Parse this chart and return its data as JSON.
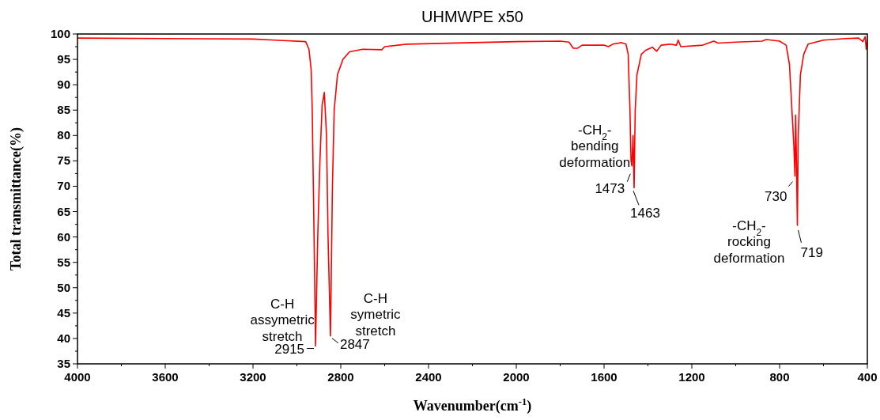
{
  "chart_data": {
    "type": "line",
    "title": "UHMWPE x50",
    "xlabel": "Wavenumber(cm$^{-1}$)",
    "ylabel": "Total transmittance(%)",
    "xlim": [
      4000,
      400
    ],
    "ylim": [
      35,
      100
    ],
    "xticks": [
      4000,
      {
        "value": 3800,
        "label": null
      },
      3600,
      {
        "value": 3400,
        "label": null
      },
      3200,
      {
        "value": 3000,
        "label": null
      },
      2800,
      {
        "value": 2600,
        "label": null
      },
      2400,
      {
        "value": 2200,
        "label": null
      },
      2000,
      {
        "value": 1800,
        "label": null
      },
      1600,
      {
        "value": 1400,
        "label": null
      },
      1200,
      {
        "value": 1000,
        "label": null
      },
      800,
      {
        "value": 600,
        "label": null
      },
      400
    ],
    "yticks": [
      35,
      {
        "value": 37.5,
        "label": null
      },
      40,
      {
        "value": 42.5,
        "label": null
      },
      45,
      {
        "value": 47.5,
        "label": null
      },
      50,
      {
        "value": 52.5,
        "label": null
      },
      55,
      {
        "value": 57.5,
        "label": null
      },
      60,
      {
        "value": 62.5,
        "label": null
      },
      65,
      {
        "value": 67.5,
        "label": null
      },
      70,
      {
        "value": 72.5,
        "label": null
      },
      75,
      {
        "value": 77.5,
        "label": null
      },
      80,
      {
        "value": 82.5,
        "label": null
      },
      85,
      {
        "value": 87.5,
        "label": null
      },
      90,
      {
        "value": 92.5,
        "label": null
      },
      95,
      {
        "value": 97.5,
        "label": null
      },
      100
    ],
    "grid": false,
    "marker": "none",
    "line_style": "solid",
    "series": [
      {
        "color": "#ff0000",
        "x": [
          4000,
          3600,
          3200,
          3100,
          2960,
          2945,
          2935,
          2930,
          2925,
          2920,
          2915,
          2905,
          2895,
          2885,
          2875,
          2865,
          2858,
          2847,
          2838,
          2830,
          2815,
          2790,
          2760,
          2700,
          2613,
          2600,
          2500,
          2200,
          2000,
          1800,
          1760,
          1740,
          1720,
          1700,
          1600,
          1580,
          1560,
          1520,
          1500,
          1490,
          1482,
          1477,
          1473,
          1468,
          1463,
          1458,
          1450,
          1430,
          1410,
          1380,
          1360,
          1340,
          1300,
          1270,
          1262,
          1250,
          1150,
          1100,
          1080,
          1000,
          880,
          860,
          800,
          770,
          755,
          745,
          735,
          730,
          727,
          723,
          719,
          715,
          705,
          690,
          670,
          600,
          500,
          440,
          420,
          410,
          405,
          400
        ],
        "values": [
          99.2,
          99.1,
          99.0,
          98.8,
          98.5,
          97,
          93,
          85,
          70,
          55,
          38.5,
          60,
          75,
          86,
          88.5,
          80,
          60,
          40.5,
          70,
          85,
          92,
          95,
          96.5,
          97,
          96.9,
          97.5,
          98,
          98.3,
          98.5,
          98.6,
          98.4,
          97.2,
          97.2,
          97.8,
          97.8,
          97.5,
          98,
          98.3,
          98,
          96,
          85,
          75,
          74,
          80,
          69.7,
          85,
          92,
          96,
          96.8,
          97.4,
          96.6,
          97.8,
          98,
          97.8,
          98.8,
          97.5,
          97.8,
          98.6,
          98.2,
          98.4,
          98.6,
          98.9,
          98.6,
          97.8,
          94,
          86,
          78,
          72,
          84,
          75,
          62.3,
          80,
          92,
          96,
          98,
          98.8,
          99.1,
          99.2,
          98.5,
          99.5,
          97,
          99
        ]
      }
    ],
    "annotations": [
      {
        "text": "C-H\nassymetric\nstretch",
        "x": 2915,
        "y": 38.5
      },
      {
        "text": "2915",
        "x": 2915,
        "y": 38.5
      },
      {
        "text": "C-H\nsymetric\nstretch",
        "x": 2847,
        "y": 40.5
      },
      {
        "text": "2847",
        "x": 2847,
        "y": 40.5
      },
      {
        "text": "-CH$_{2}$-\nbending\ndeformation",
        "x": 1473,
        "y": 74
      },
      {
        "text": "1473",
        "x": 1473,
        "y": 74
      },
      {
        "text": "1463",
        "x": 1463,
        "y": 69.7
      },
      {
        "text": "730",
        "x": 730,
        "y": 72
      },
      {
        "text": "-CH$_{2}$-\nrocking\ndeformation",
        "x": 719,
        "y": 62.3
      },
      {
        "text": "719",
        "x": 719,
        "y": 62.3
      }
    ]
  }
}
